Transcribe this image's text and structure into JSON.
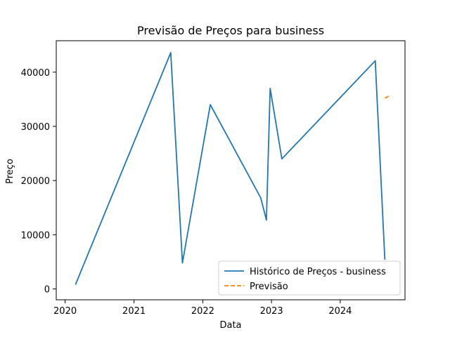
{
  "chart_data": {
    "type": "line",
    "title": "Previsão de Preços para business",
    "xlabel": "Data",
    "ylabel": "Preço",
    "xlim": [
      "2019-11-15",
      "2024-12-10"
    ],
    "ylim": [
      -2000,
      45800
    ],
    "xticks": [
      {
        "label": "2020",
        "value": "2020-01-01"
      },
      {
        "label": "2021",
        "value": "2021-01-01"
      },
      {
        "label": "2022",
        "value": "2022-01-01"
      },
      {
        "label": "2023",
        "value": "2023-01-01"
      },
      {
        "label": "2024",
        "value": "2024-01-01"
      }
    ],
    "yticks": [
      0,
      10000,
      20000,
      30000,
      40000
    ],
    "grid": false,
    "legend_position": "lower-right",
    "series": [
      {
        "name": "Histórico de Preços - business",
        "color": "#1f77b4",
        "style": "solid",
        "points": [
          {
            "x": "2020-02-25",
            "y": 800
          },
          {
            "x": "2021-07-15",
            "y": 43600
          },
          {
            "x": "2021-09-15",
            "y": 4800
          },
          {
            "x": "2022-02-10",
            "y": 34000
          },
          {
            "x": "2022-11-05",
            "y": 16800
          },
          {
            "x": "2022-12-05",
            "y": 12700
          },
          {
            "x": "2022-12-25",
            "y": 37000
          },
          {
            "x": "2023-02-25",
            "y": 24000
          },
          {
            "x": "2024-07-05",
            "y": 42100
          },
          {
            "x": "2024-08-25",
            "y": 5400
          }
        ]
      },
      {
        "name": "Previsão",
        "color": "#ff7f0e",
        "style": "dashed",
        "points": [
          {
            "x": "2024-08-25",
            "y": 35200
          },
          {
            "x": "2024-09-05",
            "y": 35400
          },
          {
            "x": "2024-09-15",
            "y": 35600
          }
        ]
      }
    ]
  }
}
